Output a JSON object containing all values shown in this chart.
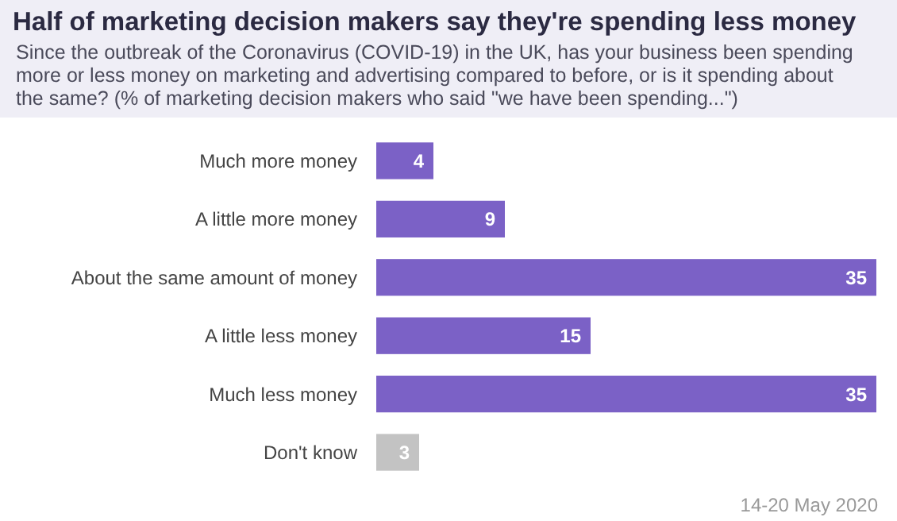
{
  "chart_data": {
    "type": "bar",
    "orientation": "horizontal",
    "title": "Half of marketing decision makers say they're spending less money",
    "subtitle": "Since the outbreak of the Coronavirus (COVID-19) in the UK, has your business been spending more or less money on marketing and advertising compared to before, or is it spending about the same? (% of marketing decision makers who said \"we have been spending...\")",
    "categories": [
      "Much more money",
      "A little more money",
      "About the same amount of money",
      "A little less money",
      "Much less money",
      "Don't know"
    ],
    "values": [
      4,
      9,
      35,
      15,
      35,
      3
    ],
    "colors": [
      "#7b61c6",
      "#7b61c6",
      "#7b61c6",
      "#7b61c6",
      "#7b61c6",
      "#c3c3c3"
    ],
    "data_labels": true,
    "annotations": [
      "14-20 May 2020"
    ]
  }
}
